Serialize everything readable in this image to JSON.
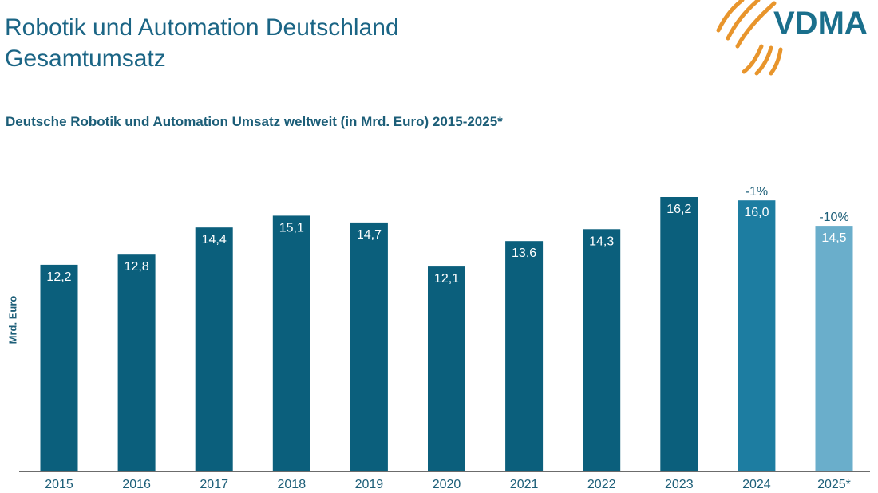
{
  "slide": {
    "title_line1": "Robotik und Automation Deutschland",
    "title_line2": "Gesamtumsatz"
  },
  "logo": {
    "text": "VDMA",
    "text_color": "#1a6f8c",
    "swoosh_color": "#e8952c",
    "icon": "vdma-logo-icon"
  },
  "chart_data": {
    "type": "bar",
    "title": "Deutsche Robotik und Automation Umsatz weltweit (in Mrd. Euro) 2015-2025*",
    "xlabel": "",
    "ylabel": "Mrd. Euro",
    "categories": [
      "2015",
      "2016",
      "2017",
      "2018",
      "2019",
      "2020",
      "2021",
      "2022",
      "2023",
      "2024",
      "2025*"
    ],
    "values": [
      12.2,
      12.8,
      14.4,
      15.1,
      14.7,
      12.1,
      13.6,
      14.3,
      16.2,
      16.0,
      14.5
    ],
    "value_labels": [
      "12,2",
      "12,8",
      "14,4",
      "15,1",
      "14,7",
      "12,1",
      "13,6",
      "14,3",
      "16,2",
      "16,0",
      "14,5"
    ],
    "annotations": [
      {
        "category": "2024",
        "text": "-1%"
      },
      {
        "category": "2025*",
        "text": "-10%"
      }
    ],
    "colors": [
      "#0b5f7c",
      "#0b5f7c",
      "#0b5f7c",
      "#0b5f7c",
      "#0b5f7c",
      "#0b5f7c",
      "#0b5f7c",
      "#0b5f7c",
      "#0b5f7c",
      "#1d7da1",
      "#6aaecb"
    ],
    "ylim": [
      0,
      16.2
    ],
    "grid": false,
    "legend": "none",
    "value_label_color": "#ffffff",
    "annotation_color": "#1c5e78",
    "tick_label_color": "#1c5e78",
    "axis_color": "#3c3c3c"
  }
}
